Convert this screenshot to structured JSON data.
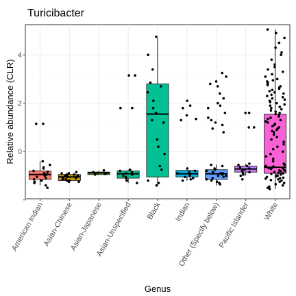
{
  "chart_data": {
    "type": "box",
    "title": "Turicibacter",
    "xlabel": "Genus",
    "ylabel": "Relative abundance (CLR)",
    "ylim": [
      -1.95,
      5.25
    ],
    "yticks": [
      -2,
      0,
      2,
      4
    ],
    "ytick_labels": [
      "",
      "0",
      "2",
      "4"
    ],
    "grid": true,
    "categories": [
      "American Indian",
      "Asian-Chinese",
      "Asian-Japanese",
      "Asian-Unspecified",
      "Black",
      "Indian",
      "Other (Specify below)",
      "Pacific Islander",
      "White"
    ],
    "colors": [
      "#F8766D",
      "#C49A00",
      "#53B400",
      "#00C094",
      "#00B6EB",
      "#00BFC4",
      "#619CFF",
      "#C77CFF",
      "#FB61D7"
    ],
    "boxes": [
      {
        "category": "American Indian",
        "q1": -1.15,
        "median": -0.95,
        "q3": -0.8,
        "whisker_low": -1.4,
        "whisker_high": -0.4,
        "color": "#F8766D"
      },
      {
        "category": "Asian-Chinese",
        "q1": -1.2,
        "median": -1.05,
        "q3": -0.95,
        "whisker_low": -1.25,
        "whisker_high": -0.85,
        "color": "#C49A00"
      },
      {
        "category": "Asian-Japanese",
        "q1": -0.95,
        "median": -0.88,
        "q3": -0.85,
        "whisker_low": -0.97,
        "whisker_high": -0.78,
        "color": "#53B400"
      },
      {
        "category": "Asian-Unspecified",
        "q1": -1.1,
        "median": -0.92,
        "q3": -0.8,
        "whisker_low": -1.3,
        "whisker_high": -0.75,
        "color": "#00C094"
      },
      {
        "category": "Black",
        "q1": -1.05,
        "median": 1.55,
        "q3": 2.8,
        "whisker_low": -1.4,
        "whisker_high": 4.7,
        "color": "#00C094"
      },
      {
        "category": "Indian",
        "q1": -1.05,
        "median": -0.92,
        "q3": -0.78,
        "whisker_low": -1.2,
        "whisker_high": -0.7,
        "color": "#00B6EB"
      },
      {
        "category": "Other (Specify below)",
        "q1": -1.15,
        "median": -0.92,
        "q3": -0.75,
        "whisker_low": -1.4,
        "whisker_high": -0.55,
        "color": "#619CFF"
      },
      {
        "category": "Pacific Islander",
        "q1": -0.85,
        "median": -0.72,
        "q3": -0.6,
        "whisker_low": -1.0,
        "whisker_high": -0.5,
        "color": "#C77CFF"
      },
      {
        "category": "White",
        "q1": -0.9,
        "median": -0.65,
        "q3": 1.55,
        "whisker_low": -1.55,
        "whisker_high": 5.05,
        "color": "#FB61D7"
      }
    ],
    "points": [
      {
        "category": "American Indian",
        "y": [
          1.15,
          1.15,
          -0.4,
          -0.55,
          -0.65,
          -0.7,
          -0.8,
          -0.85,
          -0.9,
          -0.95,
          -1.0,
          -1.05,
          -1.1,
          -1.15,
          -1.2,
          -1.25,
          -1.3,
          -1.4,
          -1.5
        ]
      },
      {
        "category": "Asian-Chinese",
        "y": [
          -0.85,
          -0.9,
          -0.9,
          -0.95,
          -0.95,
          -1.0,
          -1.0,
          -1.0,
          -1.05,
          -1.05,
          -1.05,
          -1.1,
          -1.1,
          -1.15,
          -1.15,
          -1.2,
          -1.2,
          -1.25,
          -1.25
        ]
      },
      {
        "category": "Asian-Japanese",
        "y": [
          -0.78,
          -0.85,
          -0.88,
          -0.9,
          -0.92,
          -0.95
        ]
      },
      {
        "category": "Asian-Unspecified",
        "y": [
          3.15,
          3.15,
          1.8,
          1.8,
          -0.75,
          -0.8,
          -0.85,
          -0.9,
          -0.95,
          -1.0,
          -1.05,
          -1.1,
          -1.2,
          -1.3
        ]
      },
      {
        "category": "Black",
        "y": [
          4.75,
          4.0,
          3.4,
          2.85,
          2.7,
          2.45,
          2.1,
          1.8,
          1.6,
          1.3,
          1.2,
          0.5,
          0.2,
          -0.1,
          -0.6,
          -0.75,
          -1.2,
          -1.3,
          -1.4
        ]
      },
      {
        "category": "Indian",
        "y": [
          2.1,
          1.9,
          1.8,
          1.5,
          1.35,
          1.3,
          -0.7,
          -0.8,
          -0.85,
          -0.9,
          -0.95,
          -1.0,
          -1.05,
          -1.1,
          -1.15,
          -1.2
        ]
      },
      {
        "category": "Other (Specify below)",
        "y": [
          3.25,
          3.1,
          2.9,
          2.8,
          2.7,
          2.4,
          2.2,
          2.0,
          1.9,
          1.8,
          1.6,
          1.4,
          1.3,
          1.2,
          1.1,
          0.95,
          0.8,
          -0.55,
          -0.6,
          -0.7,
          -0.75,
          -0.8,
          -0.85,
          -0.9,
          -0.9,
          -0.95,
          -1.0,
          -1.0,
          -1.05,
          -1.1,
          -1.15,
          -1.2,
          -1.25,
          -1.3,
          -1.35
        ]
      },
      {
        "category": "Pacific Islander",
        "y": [
          1.6,
          1.6,
          1.0,
          1.0,
          -0.5,
          -0.55,
          -0.6,
          -0.65,
          -0.7,
          -0.75,
          -0.8,
          -0.85,
          -0.9,
          -0.95,
          -1.0,
          -1.15
        ]
      },
      {
        "category": "White",
        "y": [
          5.05,
          4.9,
          4.7,
          4.5,
          4.3,
          4.1,
          4.0,
          3.8,
          3.6,
          3.5,
          3.4,
          3.3,
          3.2,
          3.1,
          3.0,
          2.95,
          2.9,
          2.85,
          2.8,
          2.75,
          2.7,
          2.65,
          2.6,
          2.55,
          2.5,
          2.45,
          2.4,
          2.35,
          2.3,
          2.25,
          2.2,
          2.15,
          2.1,
          2.05,
          2.0,
          1.95,
          1.9,
          1.85,
          1.8,
          1.75,
          1.7,
          1.65,
          1.6,
          1.55,
          1.5,
          1.45,
          1.4,
          1.35,
          1.3,
          1.25,
          1.2,
          1.15,
          1.1,
          1.05,
          1.0,
          0.95,
          0.9,
          0.85,
          0.8,
          0.7,
          0.6,
          0.5,
          0.4,
          0.3,
          0.2,
          0.1,
          0.0,
          -0.1,
          -0.2,
          -0.3,
          -0.4,
          -0.5,
          -0.55,
          -0.6,
          -0.62,
          -0.65,
          -0.68,
          -0.7,
          -0.72,
          -0.75,
          -0.78,
          -0.8,
          -0.82,
          -0.85,
          -0.88,
          -0.9,
          -0.92,
          -0.95,
          -0.98,
          -1.0,
          -1.02,
          -1.05,
          -1.08,
          -1.1,
          -1.12,
          -1.15,
          -1.18,
          -1.2,
          -1.25,
          -1.3,
          -1.35,
          -1.4,
          -1.45,
          -1.5,
          -1.55
        ]
      }
    ]
  }
}
